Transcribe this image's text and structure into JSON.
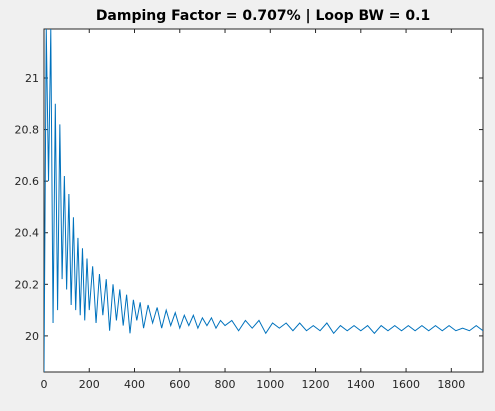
{
  "chart_data": {
    "type": "line",
    "title": "Damping Factor = 0.707% | Loop BW = 0.1",
    "xlabel": "",
    "ylabel": "",
    "xlim": [
      0,
      1940
    ],
    "ylim": [
      19.86,
      21.19
    ],
    "xticks": [
      0,
      200,
      400,
      600,
      800,
      1000,
      1200,
      1400,
      1600,
      1800
    ],
    "yticks": [
      20,
      20.2,
      20.4,
      20.6,
      20.8,
      21
    ],
    "grid": false,
    "series": [
      {
        "color": "#0072bd",
        "x": [
          0,
          10,
          20,
          30,
          40,
          50,
          60,
          70,
          80,
          90,
          100,
          110,
          120,
          130,
          140,
          150,
          160,
          170,
          180,
          190,
          200,
          215,
          230,
          245,
          260,
          275,
          290,
          305,
          320,
          335,
          350,
          365,
          380,
          395,
          410,
          425,
          440,
          460,
          480,
          500,
          520,
          540,
          560,
          580,
          600,
          620,
          640,
          660,
          680,
          700,
          720,
          740,
          760,
          780,
          800,
          830,
          860,
          890,
          920,
          950,
          980,
          1010,
          1040,
          1070,
          1100,
          1130,
          1160,
          1190,
          1220,
          1250,
          1280,
          1310,
          1340,
          1370,
          1400,
          1430,
          1460,
          1490,
          1520,
          1550,
          1580,
          1610,
          1640,
          1670,
          1700,
          1730,
          1760,
          1790,
          1820,
          1850,
          1880,
          1910,
          1940
        ],
        "y": [
          19.86,
          21.19,
          20.6,
          21.19,
          20.05,
          20.9,
          20.1,
          20.82,
          20.22,
          20.62,
          20.18,
          20.55,
          20.12,
          20.46,
          20.1,
          20.38,
          20.08,
          20.34,
          20.06,
          20.3,
          20.1,
          20.27,
          20.05,
          20.24,
          20.08,
          20.22,
          20.02,
          20.2,
          20.06,
          20.18,
          20.04,
          20.16,
          20.01,
          20.14,
          20.06,
          20.13,
          20.03,
          20.12,
          20.05,
          20.11,
          20.03,
          20.1,
          20.04,
          20.09,
          20.03,
          20.08,
          20.04,
          20.08,
          20.03,
          20.07,
          20.04,
          20.07,
          20.03,
          20.06,
          20.04,
          20.06,
          20.02,
          20.06,
          20.03,
          20.06,
          20.01,
          20.05,
          20.03,
          20.05,
          20.02,
          20.05,
          20.02,
          20.04,
          20.02,
          20.05,
          20.01,
          20.04,
          20.02,
          20.04,
          20.02,
          20.04,
          20.01,
          20.04,
          20.02,
          20.04,
          20.02,
          20.04,
          20.02,
          20.04,
          20.02,
          20.04,
          20.02,
          20.04,
          20.02,
          20.03,
          20.02,
          20.04,
          20.02
        ]
      }
    ]
  }
}
